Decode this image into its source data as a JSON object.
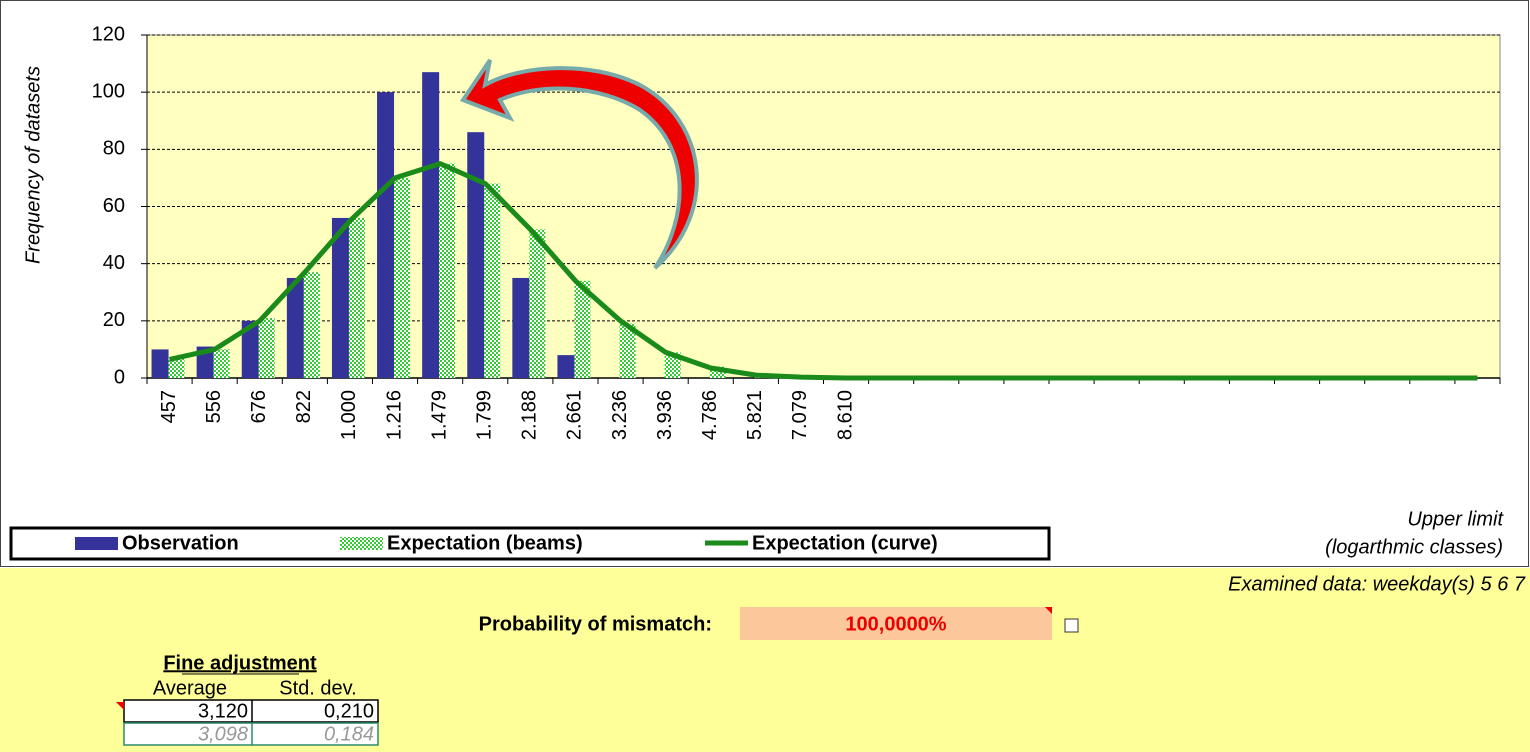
{
  "chart_data": {
    "type": "bar",
    "y_axis_label": "Frequency of datasets",
    "x_axis_label": [
      "Upper limit",
      "(logarthmic classes)"
    ],
    "categories": [
      "457",
      "556",
      "676",
      "822",
      "1.000",
      "1.216",
      "1.479",
      "1.799",
      "2.188",
      "2.661",
      "3.236",
      "3.936",
      "4.786",
      "5.821",
      "7.079",
      "8.610",
      null,
      null,
      null,
      null,
      null,
      null,
      null,
      null,
      null,
      null,
      null,
      null,
      null,
      null
    ],
    "series": [
      {
        "name": "Observation",
        "kind": "bar",
        "color": "#333399",
        "values": [
          10,
          11,
          20,
          35,
          56,
          100,
          107,
          86,
          35,
          8,
          0,
          0,
          0,
          0,
          0,
          0,
          0,
          0,
          0,
          0,
          0,
          0,
          0,
          0,
          0,
          0,
          0,
          0,
          0,
          0
        ]
      },
      {
        "name": "Expectation (beams)",
        "kind": "checkered-bar",
        "color": "#33cc33",
        "values": [
          7,
          10,
          21,
          37,
          56,
          70,
          75,
          68,
          52,
          34,
          19,
          9,
          4,
          1,
          0.3,
          0.1,
          0,
          0,
          0,
          0,
          0,
          0,
          0,
          0,
          0,
          0,
          0,
          0,
          0,
          0
        ]
      },
      {
        "name": "Expectation (curve)",
        "kind": "line",
        "color": "#1a8a1a",
        "values": [
          6.5,
          10,
          20,
          37,
          55,
          70,
          75,
          68,
          52,
          34,
          20,
          9,
          3.5,
          1,
          0.3,
          0,
          0,
          0,
          0,
          0,
          0,
          0,
          0,
          0,
          0,
          0,
          0,
          0,
          0,
          0
        ]
      }
    ],
    "ylim": [
      0,
      120
    ],
    "yticks": [
      0,
      20,
      40,
      60,
      80,
      100,
      120
    ],
    "grid": true
  },
  "panel": {
    "examined": "Examined data: weekday(s) 5 6 7",
    "mismatch_label": "Probability of mismatch:",
    "mismatch_value": "100,0000%",
    "fine": {
      "title": "Fine adjustment",
      "headers": [
        "Average",
        "Std. dev."
      ],
      "rows": [
        [
          "3,120",
          "0,210"
        ],
        [
          "3,098",
          "0,184"
        ]
      ]
    }
  }
}
